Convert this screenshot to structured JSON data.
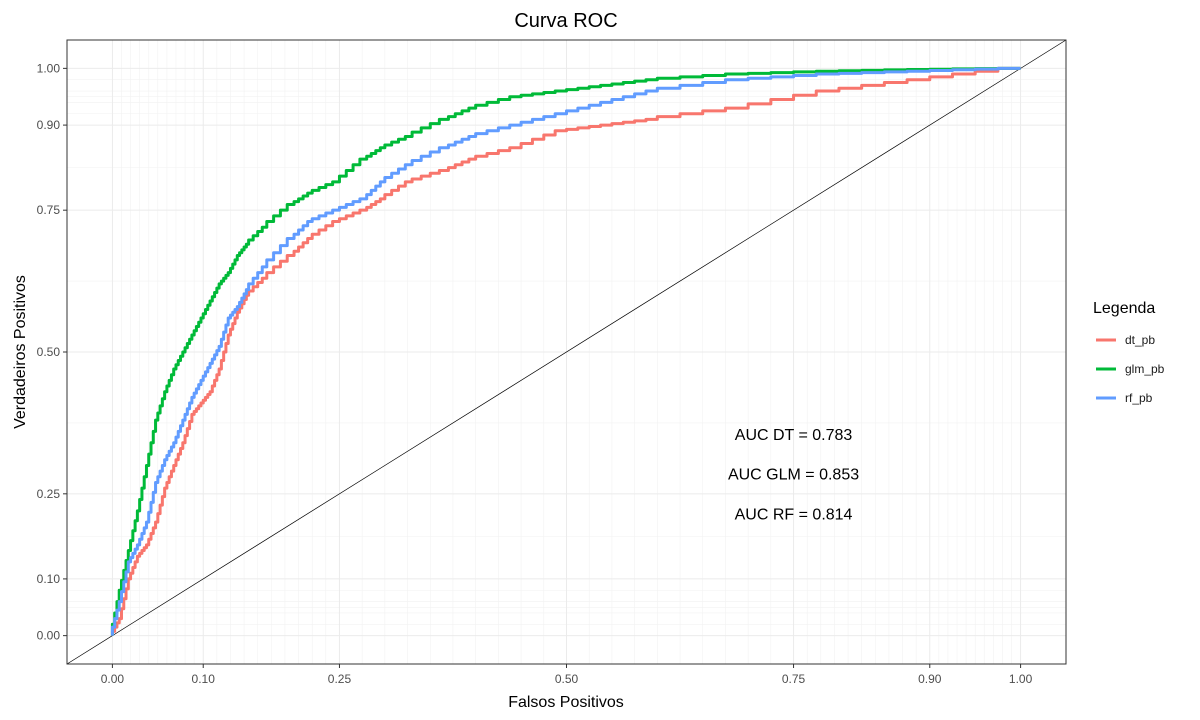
{
  "chart_data": {
    "type": "line",
    "title": "Curva ROC",
    "xlabel": "Falsos Positivos",
    "ylabel": "Verdadeiros Positivos",
    "xlim": [
      -0.05,
      1.05
    ],
    "ylim": [
      -0.05,
      1.05
    ],
    "x_ticks": [
      0.0,
      0.1,
      0.25,
      0.5,
      0.75,
      0.9,
      1.0
    ],
    "x_tick_labels": [
      "0.00",
      "0.10",
      "0.25",
      "0.50",
      "0.75",
      "0.90",
      "1.00"
    ],
    "y_ticks": [
      0.0,
      0.1,
      0.25,
      0.5,
      0.75,
      0.9,
      1.0
    ],
    "y_tick_labels": [
      "0.00",
      "0.10",
      "0.25",
      "0.50",
      "0.75",
      "0.90",
      "1.00"
    ],
    "grid": true,
    "legend": {
      "title": "Legenda",
      "position": "right"
    },
    "series": [
      {
        "name": "dt_pb",
        "color": "#F8766D",
        "x": [
          0,
          0.01,
          0.02,
          0.03,
          0.04,
          0.05,
          0.06,
          0.07,
          0.08,
          0.09,
          0.1,
          0.11,
          0.12,
          0.13,
          0.14,
          0.15,
          0.17,
          0.2,
          0.22,
          0.25,
          0.28,
          0.3,
          0.33,
          0.37,
          0.4,
          0.45,
          0.5,
          0.55,
          0.6,
          0.7,
          0.8,
          0.9,
          1.0
        ],
        "y": [
          0,
          0.03,
          0.1,
          0.14,
          0.16,
          0.2,
          0.26,
          0.3,
          0.34,
          0.39,
          0.41,
          0.43,
          0.47,
          0.53,
          0.57,
          0.6,
          0.63,
          0.67,
          0.7,
          0.73,
          0.75,
          0.77,
          0.8,
          0.82,
          0.84,
          0.86,
          0.89,
          0.9,
          0.91,
          0.93,
          0.96,
          0.98,
          1.0
        ]
      },
      {
        "name": "glm_pb",
        "color": "#00BA38",
        "x": [
          0,
          0.01,
          0.02,
          0.03,
          0.04,
          0.05,
          0.06,
          0.07,
          0.08,
          0.09,
          0.1,
          0.11,
          0.12,
          0.13,
          0.14,
          0.15,
          0.17,
          0.2,
          0.22,
          0.25,
          0.28,
          0.3,
          0.33,
          0.37,
          0.4,
          0.45,
          0.5,
          0.55,
          0.6,
          0.7,
          0.8,
          0.9,
          1.0
        ],
        "y": [
          0,
          0.08,
          0.15,
          0.22,
          0.3,
          0.38,
          0.43,
          0.47,
          0.5,
          0.53,
          0.56,
          0.59,
          0.62,
          0.64,
          0.67,
          0.69,
          0.72,
          0.76,
          0.78,
          0.8,
          0.84,
          0.86,
          0.88,
          0.91,
          0.93,
          0.95,
          0.96,
          0.97,
          0.98,
          0.99,
          0.995,
          0.998,
          1.0
        ]
      },
      {
        "name": "rf_pb",
        "color": "#619CFF",
        "x": [
          0,
          0.01,
          0.02,
          0.03,
          0.04,
          0.05,
          0.06,
          0.07,
          0.08,
          0.09,
          0.1,
          0.11,
          0.12,
          0.13,
          0.14,
          0.15,
          0.17,
          0.2,
          0.22,
          0.25,
          0.28,
          0.3,
          0.33,
          0.37,
          0.4,
          0.45,
          0.5,
          0.55,
          0.6,
          0.7,
          0.8,
          0.9,
          1.0
        ],
        "y": [
          0,
          0.06,
          0.13,
          0.16,
          0.2,
          0.27,
          0.31,
          0.34,
          0.38,
          0.42,
          0.45,
          0.48,
          0.51,
          0.56,
          0.58,
          0.61,
          0.65,
          0.7,
          0.73,
          0.75,
          0.77,
          0.8,
          0.83,
          0.86,
          0.88,
          0.9,
          0.92,
          0.94,
          0.96,
          0.98,
          0.99,
          0.995,
          1.0
        ]
      }
    ],
    "reference_line": {
      "x": [
        0,
        1
      ],
      "y": [
        0,
        1
      ],
      "color": "#000000"
    },
    "annotations": [
      {
        "text": "AUC DT = 0.783",
        "x": 0.75,
        "y": 0.345
      },
      {
        "text": "AUC GLM = 0.853",
        "x": 0.75,
        "y": 0.275
      },
      {
        "text": "AUC RF = 0.814",
        "x": 0.75,
        "y": 0.205
      }
    ]
  }
}
